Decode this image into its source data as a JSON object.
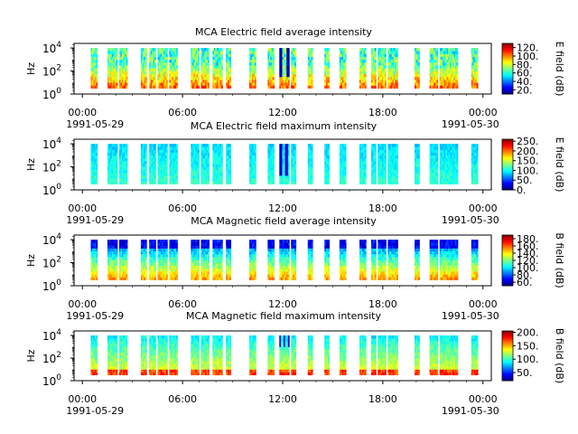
{
  "chart_data": [
    {
      "type": "heatmap",
      "title": "MCA  Electric field average intensity",
      "ylabel": "Hz",
      "colorbar_label": "E field (dB)",
      "colorbar_ticks": [
        "120.",
        "100.",
        "80.",
        "60.",
        "40.",
        "20."
      ],
      "colorbar_range": [
        10,
        130
      ],
      "y_scale": "log",
      "y_ticks": [
        "10^4",
        "10^2",
        "10^0"
      ],
      "y_range_log10": [
        0,
        4.4
      ],
      "x_ticks": [
        "00:00",
        "06:00",
        "12:00",
        "18:00",
        "00:00"
      ],
      "x_range_hours": [
        -0.5,
        24.5
      ],
      "date_labels": [
        "1991-05-29",
        "1991-05-30"
      ],
      "style": "avg_e"
    },
    {
      "type": "heatmap",
      "title": "MCA  Electric field maximum intensity",
      "ylabel": "Hz",
      "colorbar_label": "E field (dB)",
      "colorbar_ticks": [
        "250.",
        "200.",
        "150.",
        "100.",
        "50.",
        "0."
      ],
      "colorbar_range": [
        0,
        260
      ],
      "y_scale": "log",
      "y_ticks": [
        "10^4",
        "10^2",
        "10^0"
      ],
      "y_range_log10": [
        0,
        4.4
      ],
      "x_ticks": [
        "00:00",
        "06:00",
        "12:00",
        "18:00",
        "00:00"
      ],
      "x_range_hours": [
        -0.5,
        24.5
      ],
      "date_labels": [
        "1991-05-29",
        "1991-05-30"
      ],
      "style": "max_e"
    },
    {
      "type": "heatmap",
      "title": "MCA  Magnetic field average intensity",
      "ylabel": "Hz",
      "colorbar_label": "B field (dB)",
      "colorbar_ticks": [
        "180.",
        "160.",
        "140.",
        "120.",
        "100.",
        "80.",
        "60."
      ],
      "colorbar_range": [
        50,
        190
      ],
      "y_scale": "log",
      "y_ticks": [
        "10^4",
        "10^2",
        "10^0"
      ],
      "y_range_log10": [
        0,
        4.4
      ],
      "x_ticks": [
        "00:00",
        "06:00",
        "12:00",
        "18:00",
        "00:00"
      ],
      "x_range_hours": [
        -0.5,
        24.5
      ],
      "date_labels": [
        "1991-05-29",
        "1991-05-30"
      ],
      "style": "avg_b"
    },
    {
      "type": "heatmap",
      "title": "MCA  Magnetic field maximum intensity",
      "ylabel": "Hz",
      "colorbar_label": "B field (dB)",
      "colorbar_ticks": [
        "200.",
        "150.",
        "100.",
        "50."
      ],
      "colorbar_range": [
        20,
        205
      ],
      "y_scale": "log",
      "y_ticks": [
        "10^4",
        "10^2",
        "10^0"
      ],
      "y_range_log10": [
        0,
        4.4
      ],
      "x_ticks": [
        "00:00",
        "06:00",
        "12:00",
        "18:00",
        "00:00"
      ],
      "x_range_hours": [
        -0.5,
        24.5
      ],
      "date_labels": [
        "1991-05-29",
        "1991-05-30"
      ],
      "style": "max_b"
    }
  ],
  "data_segments_hours": [
    [
      0.5,
      0.9
    ],
    [
      1.5,
      2.1
    ],
    [
      2.2,
      2.7
    ],
    [
      3.5,
      3.85
    ],
    [
      4.0,
      4.4
    ],
    [
      4.5,
      5.1
    ],
    [
      5.2,
      5.7
    ],
    [
      6.5,
      7.0
    ],
    [
      7.1,
      7.6
    ],
    [
      7.8,
      8.4
    ],
    [
      8.6,
      8.9
    ],
    [
      10.0,
      10.4
    ],
    [
      11.1,
      11.5
    ],
    [
      11.8,
      12.4
    ],
    [
      12.5,
      12.8
    ],
    [
      13.5,
      13.8
    ],
    [
      14.5,
      14.8
    ],
    [
      15.4,
      15.8
    ],
    [
      16.6,
      17.0
    ],
    [
      17.3,
      17.6
    ],
    [
      17.7,
      18.2
    ],
    [
      18.3,
      18.9
    ],
    [
      19.9,
      20.2
    ],
    [
      20.8,
      21.3
    ],
    [
      21.4,
      22.0
    ],
    [
      22.0,
      22.5
    ],
    [
      23.3,
      23.7
    ]
  ],
  "data_y_range_log10": [
    0.5,
    4.0
  ]
}
